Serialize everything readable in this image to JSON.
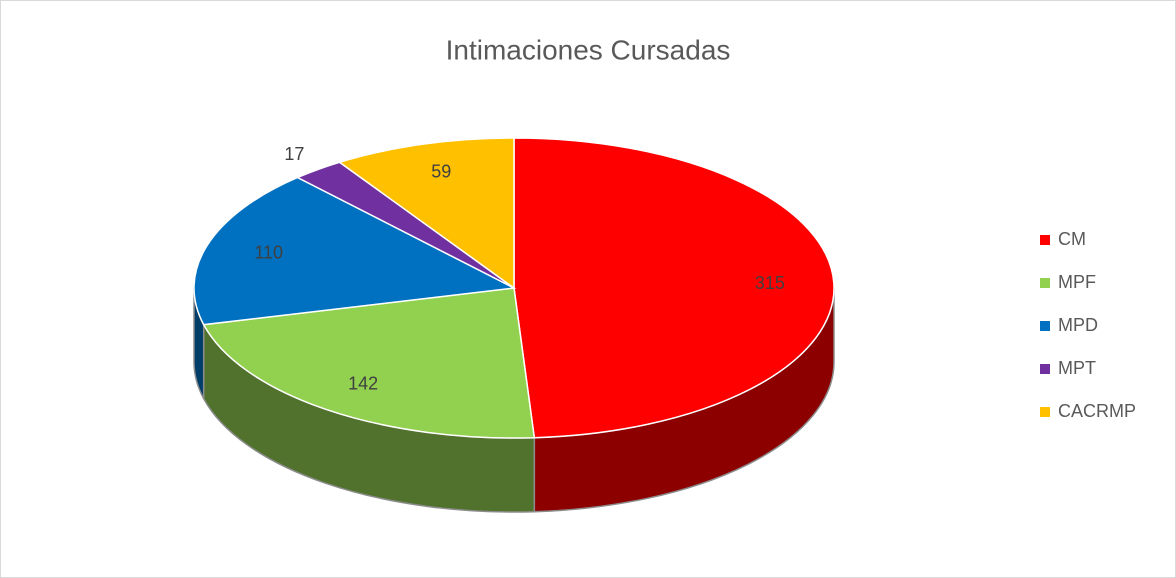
{
  "chart_data": {
    "type": "pie",
    "title": "Intimaciones Cursadas",
    "categories": [
      "CM",
      "MPF",
      "MPD",
      "MPT",
      "CACRMP"
    ],
    "values": [
      315,
      142,
      110,
      17,
      59
    ],
    "colors": [
      "#ff0000",
      "#92d050",
      "#0070c0",
      "#7030a0",
      "#ffc000"
    ],
    "legend": "right"
  }
}
